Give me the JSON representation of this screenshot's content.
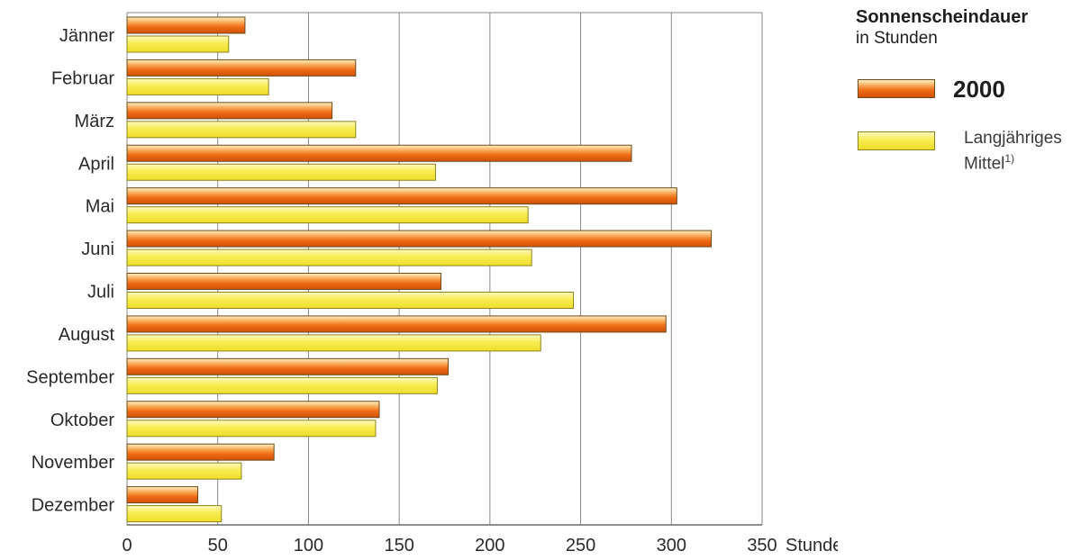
{
  "chart_data": {
    "type": "bar",
    "orientation": "horizontal",
    "categories": [
      "Jänner",
      "Februar",
      "März",
      "April",
      "Mai",
      "Juni",
      "Juli",
      "August",
      "September",
      "Oktober",
      "November",
      "Dezember"
    ],
    "series": [
      {
        "name": "2000",
        "values": [
          65,
          126,
          113,
          278,
          303,
          322,
          173,
          297,
          177,
          139,
          81,
          39
        ],
        "color": "#ee6a14"
      },
      {
        "name": "Langjähriges Mittel",
        "values": [
          56,
          78,
          126,
          170,
          221,
          223,
          246,
          228,
          171,
          137,
          63,
          52
        ],
        "color": "#f5e63c"
      }
    ],
    "xlim": [
      0,
      350
    ],
    "xticks": [
      "0",
      "50",
      "100",
      "150",
      "200",
      "250",
      "300",
      "350"
    ],
    "x_unit_label": "Stunden",
    "grid": "vertical",
    "legend": {
      "placement": "right",
      "title": "Sonnenscheindauer",
      "subtitle": "in Stunden",
      "item_2000": "2000",
      "item_mittel_line1": "Langjähriges",
      "item_mittel_line2": "Mittel",
      "item_mittel_footnote": "1)"
    }
  }
}
